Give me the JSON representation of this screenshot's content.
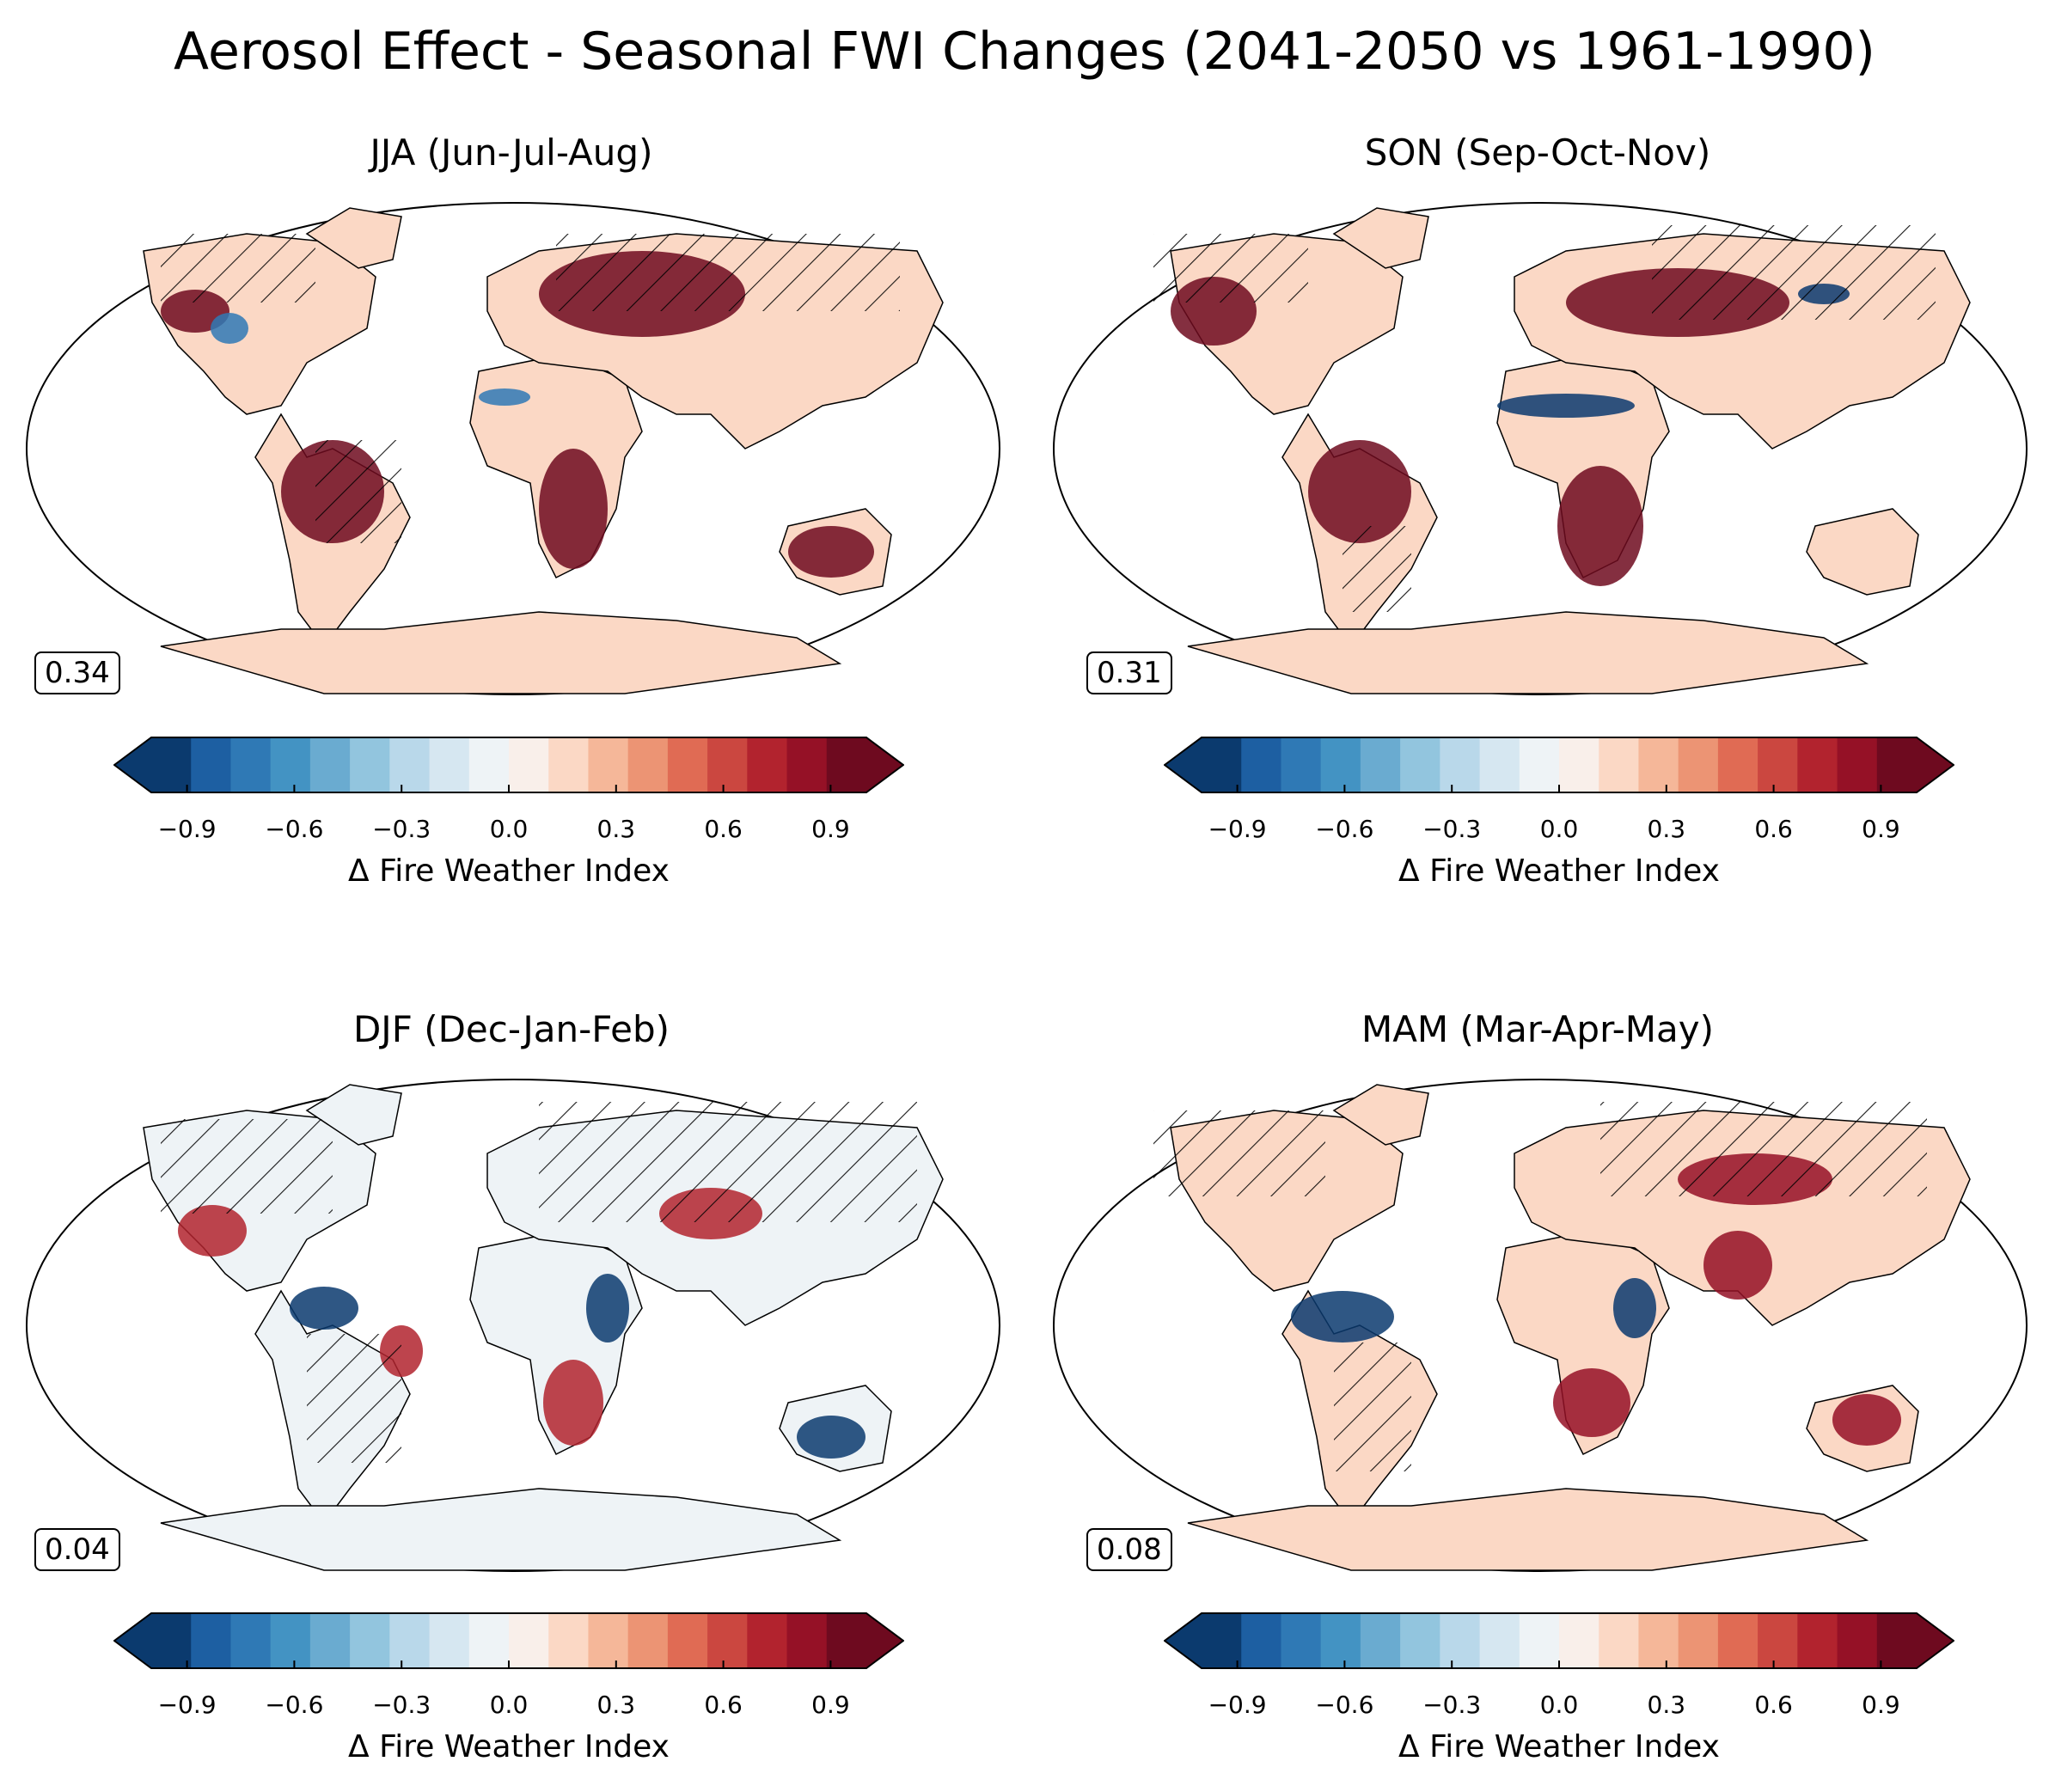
{
  "figure": {
    "title": "Aerosol Effect - Seasonal FWI Changes (2041-2050 vs 1961-1990)"
  },
  "colorbar": {
    "label": "Δ Fire Weather Index",
    "tick_labels": [
      "−0.9",
      "−0.6",
      "−0.3",
      "0.0",
      "0.3",
      "0.6",
      "0.9"
    ],
    "tick_values": [
      -0.9,
      -0.6,
      -0.3,
      0.0,
      0.3,
      0.6,
      0.9
    ],
    "range": [
      -1.0,
      1.0
    ],
    "extend": "both",
    "colors": [
      "#0b3a6e",
      "#1d5fa2",
      "#2f79b5",
      "#4393c3",
      "#6aabd0",
      "#92c5de",
      "#b9d8ea",
      "#d6e7f1",
      "#eef3f6",
      "#f9efea",
      "#fbd8c5",
      "#f5b799",
      "#ec9474",
      "#e06b54",
      "#cb4740",
      "#b2232e",
      "#951126",
      "#6e0a1f"
    ]
  },
  "panels": [
    {
      "season": "JJA",
      "title": "JJA (Jun-Jul-Aug)",
      "value": "0.34"
    },
    {
      "season": "SON",
      "title": "SON (Sep-Oct-Nov)",
      "value": "0.31"
    },
    {
      "season": "DJF",
      "title": "DJF (Dec-Jan-Feb)",
      "value": "0.04"
    },
    {
      "season": "MAM",
      "title": "MAM (Mar-Apr-May)",
      "value": "0.08"
    }
  ]
}
